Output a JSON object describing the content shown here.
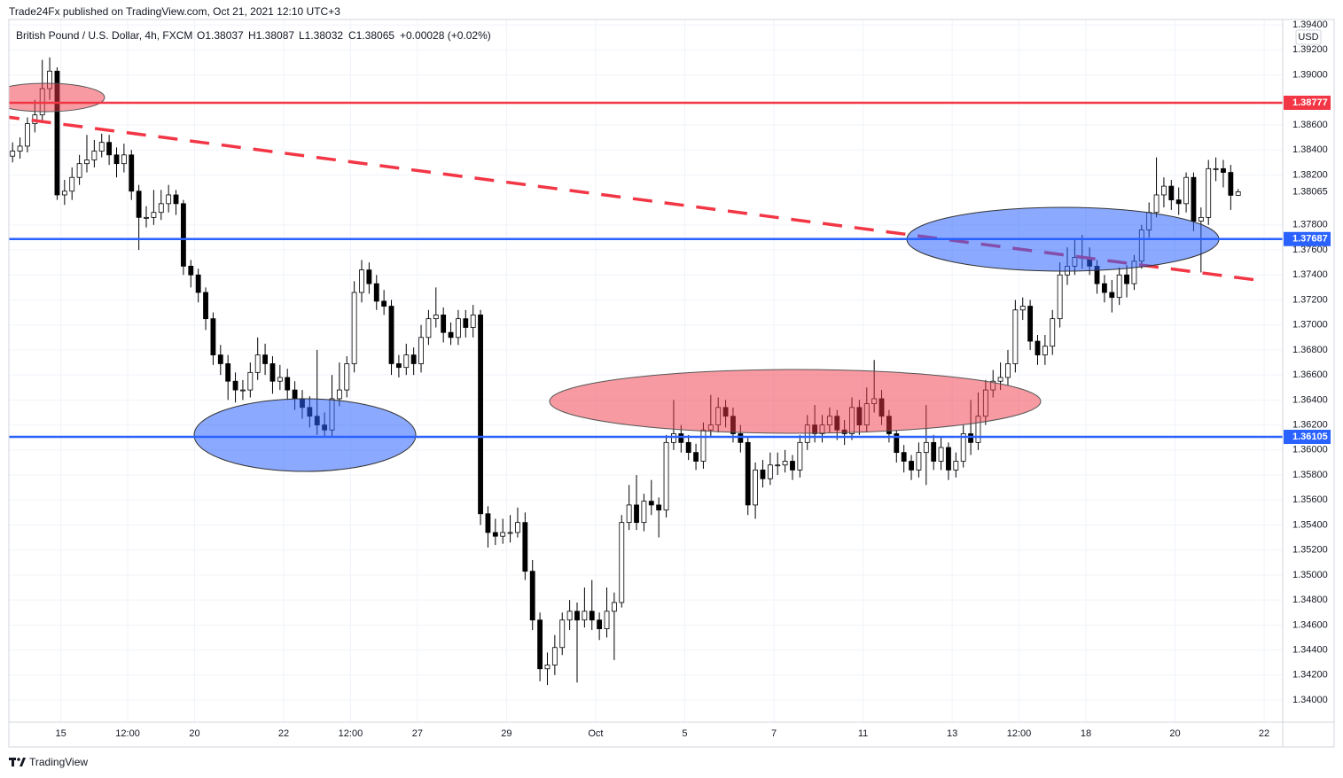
{
  "header": {
    "published": "Trade24Fx published on TradingView.com, Oct 21, 2021 12:10 UTC+3",
    "symbol": "British Pound / U.S. Dollar, 4h, FXCM",
    "ohlc": [
      "O1.38037",
      "H1.38087",
      "L1.38032",
      "C1.38065"
    ],
    "change": "+0.00028 (+0.02%)",
    "currency": "USD",
    "brand": "TradingView"
  },
  "chart_data": {
    "type": "candlestick",
    "up_color": "#ffffff",
    "down_color": "#000000",
    "wick_color": "#000000",
    "grid": true,
    "open": [
      1.3835,
      1.3839,
      1.3843,
      1.3861,
      1.3868,
      1.3889,
      1.3903,
      1.3804,
      1.3807,
      1.3818,
      1.3829,
      1.3832,
      1.3839,
      1.3846,
      1.3836,
      1.3829,
      1.3836,
      1.3807,
      1.3786,
      1.3786,
      1.379,
      1.3797,
      1.3804,
      1.3797,
      1.3747,
      1.374,
      1.3726,
      1.3705,
      1.3676,
      1.3669,
      1.3655,
      1.3648,
      1.3648,
      1.3662,
      1.3676,
      1.3669,
      1.3655,
      1.3658,
      1.3648,
      1.3641,
      1.3634,
      1.3627,
      1.362,
      1.3616,
      1.3641,
      1.3648,
      1.3669,
      1.3726,
      1.3744,
      1.3733,
      1.3719,
      1.3715,
      1.3669,
      1.3666,
      1.3676,
      1.3669,
      1.369,
      1.3705,
      1.3708,
      1.3694,
      1.369,
      1.3705,
      1.3698,
      1.3708,
      1.3549,
      1.3534,
      1.3531,
      1.3534,
      1.3534,
      1.3542,
      1.3503,
      1.3464,
      1.3425,
      1.3428,
      1.3442,
      1.3464,
      1.3471,
      1.3464,
      1.3471,
      1.3464,
      1.3457,
      1.3471,
      1.3478,
      1.3542,
      1.3556,
      1.3542,
      1.3559,
      1.3556,
      1.3552,
      1.3606,
      1.3613,
      1.3606,
      1.3598,
      1.3591,
      1.3616,
      1.362,
      1.3634,
      1.3627,
      1.3613,
      1.3606,
      1.3556,
      1.3584,
      1.3577,
      1.3588,
      1.3588,
      1.3591,
      1.3584,
      1.3606,
      1.362,
      1.3613,
      1.362,
      1.3627,
      1.3616,
      1.3613,
      1.3634,
      1.362,
      1.3637,
      1.3641,
      1.3627,
      1.3613,
      1.3598,
      1.3591,
      1.3584,
      1.3598,
      1.3606,
      1.3591,
      1.3602,
      1.3584,
      1.3591,
      1.3613,
      1.3606,
      1.3627,
      1.3648,
      1.3655,
      1.3658,
      1.3669,
      1.3712,
      1.3715,
      1.3687,
      1.3676,
      1.3683,
      1.3705,
      1.374,
      1.3747,
      1.3754,
      1.3754,
      1.3747,
      1.3733,
      1.3726,
      1.3722,
      1.374,
      1.3733,
      1.3751,
      1.3776,
      1.379,
      1.3804,
      1.3811,
      1.38,
      1.3797,
      1.3818,
      1.3783,
      1.3786,
      1.3825,
      1.3825,
      1.3822,
      1.38037
    ],
    "high": [
      1.3846,
      1.385,
      1.3866,
      1.388,
      1.3912,
      1.3914,
      1.3906,
      1.3816,
      1.3826,
      1.3836,
      1.3852,
      1.3848,
      1.3853,
      1.3852,
      1.3842,
      1.3845,
      1.384,
      1.3812,
      1.3795,
      1.3808,
      1.3808,
      1.3812,
      1.3808,
      1.38,
      1.3752,
      1.3745,
      1.373,
      1.371,
      1.3684,
      1.3676,
      1.3662,
      1.3656,
      1.367,
      1.369,
      1.3685,
      1.3675,
      1.3668,
      1.3665,
      1.3655,
      1.3648,
      1.3643,
      1.368,
      1.363,
      1.366,
      1.367,
      1.3675,
      1.3735,
      1.3752,
      1.375,
      1.374,
      1.3728,
      1.372,
      1.3676,
      1.3685,
      1.3682,
      1.37,
      1.3712,
      1.373,
      1.3714,
      1.3702,
      1.3712,
      1.3712,
      1.3716,
      1.3712,
      1.3555,
      1.3545,
      1.3545,
      1.3548,
      1.3554,
      1.355,
      1.3512,
      1.347,
      1.3438,
      1.3452,
      1.347,
      1.348,
      1.3478,
      1.349,
      1.3496,
      1.347,
      1.349,
      1.3486,
      1.3548,
      1.3572,
      1.358,
      1.3565,
      1.3576,
      1.3562,
      1.3612,
      1.364,
      1.362,
      1.3612,
      1.3605,
      1.3622,
      1.3644,
      1.3642,
      1.364,
      1.3634,
      1.362,
      1.361,
      1.359,
      1.3592,
      1.3598,
      1.3598,
      1.36,
      1.3596,
      1.3612,
      1.3628,
      1.3636,
      1.3628,
      1.3634,
      1.3632,
      1.3624,
      1.3642,
      1.364,
      1.365,
      1.3672,
      1.3648,
      1.3632,
      1.3616,
      1.3604,
      1.3596,
      1.3606,
      1.3636,
      1.3612,
      1.361,
      1.3606,
      1.3598,
      1.362,
      1.364,
      1.3646,
      1.3656,
      1.3664,
      1.367,
      1.368,
      1.372,
      1.3722,
      1.372,
      1.3692,
      1.3692,
      1.3712,
      1.375,
      1.3762,
      1.3768,
      1.3772,
      1.3762,
      1.3752,
      1.374,
      1.3736,
      1.3746,
      1.3748,
      1.3756,
      1.378,
      1.3798,
      1.3834,
      1.3818,
      1.3816,
      1.381,
      1.3822,
      1.3822,
      1.3794,
      1.3832,
      1.3834,
      1.3832,
      1.3828,
      1.38087
    ],
    "low": [
      1.383,
      1.3833,
      1.3838,
      1.3854,
      1.3862,
      1.388,
      1.38,
      1.3796,
      1.38,
      1.3812,
      1.3822,
      1.3826,
      1.3834,
      1.3828,
      1.3818,
      1.3822,
      1.38,
      1.376,
      1.3778,
      1.378,
      1.3784,
      1.379,
      1.3788,
      1.374,
      1.373,
      1.3718,
      1.3696,
      1.3668,
      1.366,
      1.364,
      1.3638,
      1.364,
      1.3642,
      1.3656,
      1.366,
      1.3645,
      1.3648,
      1.364,
      1.3632,
      1.3625,
      1.3618,
      1.3612,
      1.361,
      1.361,
      1.3635,
      1.3642,
      1.3662,
      1.3718,
      1.3725,
      1.3712,
      1.3708,
      1.366,
      1.3658,
      1.366,
      1.366,
      1.3662,
      1.3684,
      1.3698,
      1.3686,
      1.3684,
      1.3684,
      1.369,
      1.369,
      1.354,
      1.3522,
      1.3524,
      1.3525,
      1.3526,
      1.353,
      1.3496,
      1.3456,
      1.3415,
      1.3412,
      1.342,
      1.3436,
      1.3456,
      1.3414,
      1.3458,
      1.3456,
      1.3448,
      1.345,
      1.3432,
      1.3474,
      1.3536,
      1.3536,
      1.3535,
      1.3548,
      1.353,
      1.3546,
      1.36,
      1.3598,
      1.3592,
      1.3584,
      1.3585,
      1.361,
      1.3614,
      1.3618,
      1.3606,
      1.3598,
      1.3548,
      1.3545,
      1.357,
      1.3572,
      1.358,
      1.3582,
      1.3576,
      1.3578,
      1.36,
      1.3606,
      1.3606,
      1.3614,
      1.3608,
      1.3604,
      1.3608,
      1.3612,
      1.3614,
      1.363,
      1.362,
      1.3606,
      1.359,
      1.3582,
      1.3576,
      1.3578,
      1.3572,
      1.3584,
      1.3584,
      1.3576,
      1.3578,
      1.3586,
      1.3596,
      1.36,
      1.362,
      1.3642,
      1.3648,
      1.3652,
      1.3662,
      1.3704,
      1.368,
      1.3668,
      1.3668,
      1.3676,
      1.3698,
      1.3732,
      1.374,
      1.3745,
      1.374,
      1.3725,
      1.3718,
      1.371,
      1.3716,
      1.3722,
      1.3728,
      1.3745,
      1.377,
      1.3786,
      1.3794,
      1.3792,
      1.3788,
      1.379,
      1.3775,
      1.3742,
      1.378,
      1.3815,
      1.381,
      1.3792,
      1.38032
    ],
    "close": [
      1.3839,
      1.3843,
      1.3861,
      1.3868,
      1.3889,
      1.3903,
      1.3804,
      1.3807,
      1.3818,
      1.3829,
      1.3832,
      1.3839,
      1.3846,
      1.3836,
      1.3829,
      1.3836,
      1.3807,
      1.3786,
      1.3786,
      1.379,
      1.3797,
      1.3804,
      1.3797,
      1.3747,
      1.374,
      1.3726,
      1.3705,
      1.3676,
      1.3669,
      1.3655,
      1.3648,
      1.3648,
      1.3662,
      1.3676,
      1.3669,
      1.3655,
      1.3658,
      1.3648,
      1.3641,
      1.3634,
      1.3627,
      1.362,
      1.3616,
      1.3641,
      1.3648,
      1.3669,
      1.3726,
      1.3744,
      1.3733,
      1.3719,
      1.3715,
      1.3669,
      1.3666,
      1.3676,
      1.3669,
      1.369,
      1.3705,
      1.3708,
      1.3694,
      1.369,
      1.3705,
      1.3698,
      1.3708,
      1.3549,
      1.3534,
      1.3531,
      1.3534,
      1.3534,
      1.3542,
      1.3503,
      1.3464,
      1.3425,
      1.3428,
      1.3442,
      1.3464,
      1.3471,
      1.3464,
      1.3471,
      1.3464,
      1.3457,
      1.3471,
      1.3478,
      1.3542,
      1.3556,
      1.3542,
      1.3559,
      1.3556,
      1.3552,
      1.3606,
      1.3613,
      1.3606,
      1.3598,
      1.3591,
      1.3616,
      1.362,
      1.3634,
      1.3627,
      1.3613,
      1.3606,
      1.3556,
      1.3584,
      1.3577,
      1.3588,
      1.3588,
      1.3591,
      1.3584,
      1.3606,
      1.362,
      1.3613,
      1.362,
      1.3627,
      1.3616,
      1.3613,
      1.3634,
      1.362,
      1.3637,
      1.3641,
      1.3627,
      1.3613,
      1.3598,
      1.3591,
      1.3584,
      1.3598,
      1.3606,
      1.3591,
      1.3602,
      1.3584,
      1.3591,
      1.3613,
      1.3606,
      1.3627,
      1.3648,
      1.3655,
      1.3658,
      1.3669,
      1.3712,
      1.3715,
      1.3687,
      1.3676,
      1.3683,
      1.3705,
      1.374,
      1.3747,
      1.3754,
      1.3754,
      1.3747,
      1.3733,
      1.3726,
      1.3722,
      1.374,
      1.3733,
      1.3751,
      1.3776,
      1.379,
      1.3804,
      1.3811,
      1.38,
      1.3797,
      1.3818,
      1.3783,
      1.3786,
      1.3825,
      1.3825,
      1.3822,
      1.38037,
      1.38065
    ],
    "last_price": 1.38065,
    "price_lines": [
      {
        "value": 1.38777,
        "color": "#f23645"
      },
      {
        "value": 1.37687,
        "color": "#2962ff"
      },
      {
        "value": 1.36105,
        "color": "#2962ff"
      }
    ],
    "xlim": [
      -0.5,
      171
    ],
    "xticks": [
      {
        "value": 6.5,
        "label": "15"
      },
      {
        "value": 15.5,
        "label": "12:00"
      },
      {
        "value": 24.5,
        "label": "20"
      },
      {
        "value": 36.5,
        "label": "22"
      },
      {
        "value": 45.5,
        "label": "12:00"
      },
      {
        "value": 54.5,
        "label": "27"
      },
      {
        "value": 66.5,
        "label": "29"
      },
      {
        "value": 78.5,
        "label": "Oct"
      },
      {
        "value": 90.5,
        "label": "5"
      },
      {
        "value": 102.5,
        "label": "7"
      },
      {
        "value": 114.5,
        "label": "11"
      },
      {
        "value": 126.5,
        "label": "13"
      },
      {
        "value": 135.5,
        "label": "12:00"
      },
      {
        "value": 144.5,
        "label": "18"
      },
      {
        "value": 156.5,
        "label": "20"
      },
      {
        "value": 168.5,
        "label": "22"
      }
    ],
    "ylim": [
      1.33823,
      1.39443
    ],
    "yticks": [
      {
        "value": 1.34,
        "label": "1.34000"
      },
      {
        "value": 1.342,
        "label": "1.34200"
      },
      {
        "value": 1.344,
        "label": "1.34400"
      },
      {
        "value": 1.346,
        "label": "1.34600"
      },
      {
        "value": 1.348,
        "label": "1.34800"
      },
      {
        "value": 1.35,
        "label": "1.35000"
      },
      {
        "value": 1.352,
        "label": "1.35200"
      },
      {
        "value": 1.354,
        "label": "1.35400"
      },
      {
        "value": 1.356,
        "label": "1.35600"
      },
      {
        "value": 1.358,
        "label": "1.35800"
      },
      {
        "value": 1.36,
        "label": "1.36000"
      },
      {
        "value": 1.362,
        "label": "1.36200"
      },
      {
        "value": 1.364,
        "label": "1.36400"
      },
      {
        "value": 1.366,
        "label": "1.36600"
      },
      {
        "value": 1.368,
        "label": "1.36800"
      },
      {
        "value": 1.37,
        "label": "1.37000"
      },
      {
        "value": 1.372,
        "label": "1.37200"
      },
      {
        "value": 1.374,
        "label": "1.37400"
      },
      {
        "value": 1.376,
        "label": "1.37600"
      },
      {
        "value": 1.378,
        "label": "1.37800"
      },
      {
        "value": 1.382,
        "label": "1.38200"
      },
      {
        "value": 1.384,
        "label": "1.38400"
      },
      {
        "value": 1.386,
        "label": "1.38600"
      },
      {
        "value": 1.39,
        "label": "1.39000"
      },
      {
        "value": 1.392,
        "label": "1.39200"
      },
      {
        "value": 1.394,
        "label": "1.39400"
      }
    ]
  }
}
